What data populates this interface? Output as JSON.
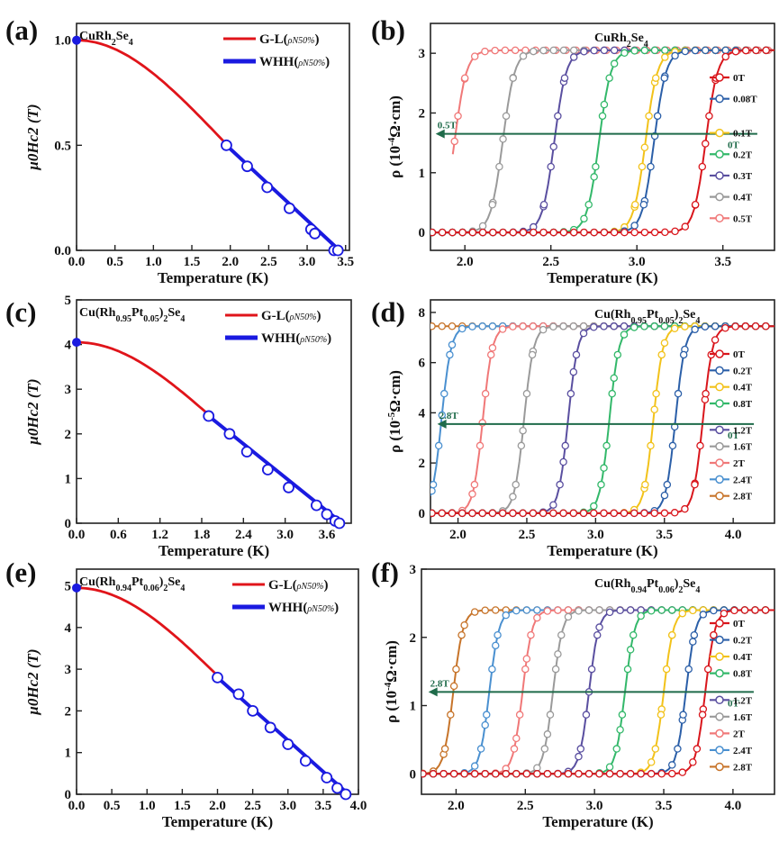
{
  "chart_data": [
    {
      "panel": "(a)",
      "type": "line",
      "inset_label": [
        "CuRh",
        "2",
        "Se",
        "4"
      ],
      "xlabel": "Temperature (K)",
      "ylabel": "μ0Hc2 (T)",
      "xlim": [
        0,
        3.55
      ],
      "ylim": [
        0,
        1.08
      ],
      "xticks": [
        0,
        0.5,
        1.0,
        1.5,
        2.0,
        2.5,
        3.0,
        3.5
      ],
      "xtick_labels": [
        "0.0",
        "0.5",
        "1.0",
        "1.5",
        "2.0",
        "2.5",
        "3.0",
        "3.5"
      ],
      "yticks": [
        0,
        0.5,
        1.0
      ],
      "ytick_labels": [
        "0.0",
        "0.5",
        "1.0"
      ],
      "legend": [
        {
          "label": "G-L(",
          "sub": "ρN50%",
          "close": ")",
          "color": "#e0141a"
        },
        {
          "label": "WHH(",
          "sub": "ρN50%",
          "close": ")",
          "color": "#1a1ae0"
        }
      ],
      "gl_fit": {
        "Hc0": 1.0,
        "Tc": 3.4,
        "t_start": 0,
        "t_end": 1.95
      },
      "whh_line": {
        "x": [
          1.95,
          3.42
        ],
        "y": [
          0.5,
          0.0
        ]
      },
      "points": {
        "x": [
          1.95,
          2.22,
          2.48,
          2.77,
          3.05,
          3.1,
          3.35,
          3.4
        ],
        "y": [
          0.5,
          0.4,
          0.3,
          0.2,
          0.1,
          0.08,
          0.0,
          0.0
        ]
      },
      "extrapolated_point": {
        "x": 0,
        "y": 1.0
      }
    },
    {
      "panel": "(b)",
      "type": "line",
      "inset_label": [
        "CuRh",
        "2",
        "Se",
        "4"
      ],
      "xlabel": "Temperature (K)",
      "ylabel": "ρ (10-4Ω·cm)",
      "ylabel_parts": [
        "ρ (10",
        "-4",
        "Ω·cm)"
      ],
      "xlim": [
        1.8,
        3.8
      ],
      "ylim": [
        -0.3,
        3.5
      ],
      "xticks": [
        2.0,
        2.5,
        3.0,
        3.5
      ],
      "xtick_labels": [
        "2.0",
        "2.5",
        "3.0",
        "3.5"
      ],
      "yticks": [
        0,
        1,
        2,
        3
      ],
      "ytick_labels": [
        "0",
        "1",
        "2",
        "3"
      ],
      "rho_n": 3.05,
      "series": [
        {
          "name": "0T",
          "tc": 3.4,
          "color": "#d9161c"
        },
        {
          "name": "0.08T",
          "tc": 3.1,
          "color": "#2b5fa8"
        },
        {
          "name": "0.1T",
          "tc": 3.05,
          "color": "#f2c21a"
        },
        {
          "name": "0.2T",
          "tc": 2.78,
          "color": "#33b86a"
        },
        {
          "name": "0.3T",
          "tc": 2.52,
          "color": "#5a4fa0"
        },
        {
          "name": "0.4T",
          "tc": 2.22,
          "color": "#9a9a9a"
        },
        {
          "name": "0.5T",
          "tc": 1.94,
          "color": "#f07878",
          "x_min": 1.93
        }
      ],
      "arrow": {
        "y": 1.65,
        "x_from": 3.7,
        "x_to": 1.83,
        "start_label": "0T",
        "end_label": "0.5T"
      },
      "legend_split_after": 1
    },
    {
      "panel": "(c)",
      "type": "line",
      "inset_label": [
        "Cu(Rh",
        "0.95",
        "Pt",
        "0.05",
        ")",
        "2",
        "Se",
        "4"
      ],
      "xlabel": "Temperature (K)",
      "ylabel": "μ0Hc2 (T)",
      "xlim": [
        0,
        3.95
      ],
      "ylim": [
        0,
        5
      ],
      "xticks": [
        0,
        0.6,
        1.2,
        1.8,
        2.4,
        3.0,
        3.6
      ],
      "xtick_labels": [
        "0.0",
        "0.6",
        "1.2",
        "1.8",
        "2.4",
        "3.0",
        "3.6"
      ],
      "yticks": [
        0,
        1,
        2,
        3,
        4,
        5
      ],
      "ytick_labels": [
        "0",
        "1",
        "2",
        "3",
        "4",
        "5"
      ],
      "legend": [
        {
          "label": "G-L(",
          "sub": "ρN50%",
          "close": ")",
          "color": "#e0141a"
        },
        {
          "label": "WHH(",
          "sub": "ρN50%",
          "close": ")",
          "color": "#1a1ae0"
        }
      ],
      "gl_fit": {
        "Hc0": 4.05,
        "Tc": 3.8,
        "t_start": 0,
        "t_end": 1.9
      },
      "whh_line": {
        "x": [
          1.9,
          3.82
        ],
        "y": [
          2.4,
          0.0
        ]
      },
      "points": {
        "x": [
          1.9,
          2.2,
          2.45,
          2.75,
          3.05,
          3.45,
          3.6,
          3.72,
          3.78
        ],
        "y": [
          2.4,
          2.0,
          1.6,
          1.2,
          0.8,
          0.4,
          0.2,
          0.05,
          0.0
        ]
      },
      "extrapolated_point": {
        "x": 0,
        "y": 4.05
      }
    },
    {
      "panel": "(d)",
      "type": "line",
      "inset_label": [
        "Cu(Rh",
        "0.95",
        "Pt",
        "0.05",
        ")",
        "2",
        "Se",
        "4"
      ],
      "xlabel": "Temperature (K)",
      "ylabel": "ρ (10-5Ω·cm)",
      "ylabel_parts": [
        "ρ (10",
        "-5",
        "Ω·cm)"
      ],
      "xlim": [
        1.8,
        4.3
      ],
      "ylim": [
        -0.4,
        8.5
      ],
      "xticks": [
        2.0,
        2.5,
        3.0,
        3.5,
        4.0
      ],
      "xtick_labels": [
        "2.0",
        "2.5",
        "3.0",
        "3.5",
        "4.0"
      ],
      "yticks": [
        0,
        2,
        4,
        6,
        8
      ],
      "ytick_labels": [
        "0",
        "2",
        "4",
        "6",
        "8"
      ],
      "rho_n": 7.45,
      "series": [
        {
          "name": "0T",
          "tc": 3.78,
          "color": "#d9161c"
        },
        {
          "name": "0.2T",
          "tc": 3.58,
          "color": "#2b5fa8"
        },
        {
          "name": "0.4T",
          "tc": 3.42,
          "color": "#f2c21a"
        },
        {
          "name": "0.8T",
          "tc": 3.1,
          "color": "#33b86a"
        },
        {
          "name": "1.2T",
          "tc": 2.8,
          "color": "#5a4fa0"
        },
        {
          "name": "1.6T",
          "tc": 2.48,
          "color": "#9a9a9a"
        },
        {
          "name": "2T",
          "tc": 2.18,
          "color": "#f07878"
        },
        {
          "name": "2.4T",
          "tc": 1.88,
          "color": "#4a90d0"
        },
        {
          "name": "2.8T",
          "tc": 1.5,
          "color": "#c7742a"
        }
      ],
      "arrow": {
        "y": 3.55,
        "x_from": 4.15,
        "x_to": 1.85,
        "start_label": "0T",
        "end_label": "2.8T"
      },
      "legend_split_after": 3
    },
    {
      "panel": "(e)",
      "type": "line",
      "inset_label": [
        "Cu(Rh",
        "0.94",
        "Pt",
        "0.06",
        ")",
        "2",
        "Se",
        "4"
      ],
      "xlabel": "Temperature (K)",
      "ylabel": "μ0Hc2 (T)",
      "xlim": [
        0,
        4.0
      ],
      "ylim": [
        0,
        5.4
      ],
      "xticks": [
        0,
        0.5,
        1.0,
        1.5,
        2.0,
        2.5,
        3.0,
        3.5,
        4.0
      ],
      "xtick_labels": [
        "0.0",
        "0.5",
        "1.0",
        "1.5",
        "2.0",
        "2.5",
        "3.0",
        "3.5",
        "4.0"
      ],
      "yticks": [
        0,
        1,
        2,
        3,
        4,
        5
      ],
      "ytick_labels": [
        "0",
        "1",
        "2",
        "3",
        "4",
        "5"
      ],
      "legend": [
        {
          "label": "G-L(",
          "sub": "ρN50%",
          "close": ")",
          "color": "#e0141a"
        },
        {
          "label": "WHH(",
          "sub": "ρN50%",
          "close": ")",
          "color": "#1a1ae0"
        }
      ],
      "gl_fit": {
        "Hc0": 4.95,
        "Tc": 3.85,
        "t_start": 0,
        "t_end": 2.0
      },
      "whh_line": {
        "x": [
          2.0,
          3.86
        ],
        "y": [
          2.8,
          0.0
        ]
      },
      "points": {
        "x": [
          2.0,
          2.3,
          2.5,
          2.75,
          3.0,
          3.25,
          3.55,
          3.7,
          3.82
        ],
        "y": [
          2.8,
          2.4,
          2.0,
          1.6,
          1.2,
          0.8,
          0.4,
          0.15,
          0.0
        ]
      },
      "extrapolated_point": {
        "x": 0,
        "y": 4.95
      }
    },
    {
      "panel": "(f)",
      "type": "line",
      "inset_label": [
        "Cu(Rh",
        "0.94",
        "Pt",
        "0.06",
        ")",
        "2",
        "Se",
        "4"
      ],
      "xlabel": "Temperature (K)",
      "ylabel": "ρ (10-4Ω·cm)",
      "ylabel_parts": [
        "ρ (10",
        "-4",
        "Ω·cm)"
      ],
      "xlim": [
        1.75,
        4.3
      ],
      "ylim": [
        -0.3,
        3.0
      ],
      "xticks": [
        2.0,
        2.5,
        3.0,
        3.5,
        4.0
      ],
      "xtick_labels": [
        "2.0",
        "2.5",
        "3.0",
        "3.5",
        "4.0"
      ],
      "yticks": [
        0,
        1,
        2,
        3
      ],
      "ytick_labels": [
        "0",
        "1",
        "2",
        "3"
      ],
      "rho_n": 2.4,
      "series": [
        {
          "name": "0T",
          "tc": 3.8,
          "color": "#d9161c"
        },
        {
          "name": "0.2T",
          "tc": 3.66,
          "color": "#2b5fa8"
        },
        {
          "name": "0.4T",
          "tc": 3.5,
          "color": "#f2c21a"
        },
        {
          "name": "0.8T",
          "tc": 3.22,
          "color": "#33b86a"
        },
        {
          "name": "1.2T",
          "tc": 2.96,
          "color": "#5a4fa0"
        },
        {
          "name": "1.6T",
          "tc": 2.7,
          "color": "#9a9a9a"
        },
        {
          "name": "2T",
          "tc": 2.48,
          "color": "#f07878"
        },
        {
          "name": "2.4T",
          "tc": 2.24,
          "color": "#4a90d0"
        },
        {
          "name": "2.8T",
          "tc": 1.98,
          "color": "#c7742a"
        }
      ],
      "arrow": {
        "y": 1.2,
        "x_from": 4.15,
        "x_to": 1.8,
        "start_label": "0T",
        "end_label": "2.8T"
      },
      "legend_split_after": 3
    }
  ]
}
